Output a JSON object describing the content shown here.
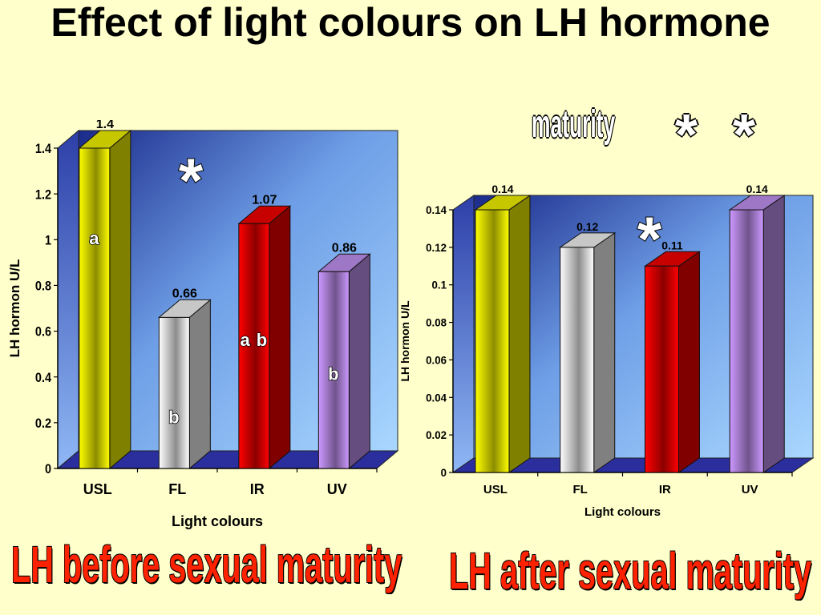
{
  "page": {
    "title": "Effect of light colours on LH hormone",
    "annotation_maturity": "maturity",
    "annotation_stars": "* *",
    "caption_before": "LH before sexual maturity",
    "caption_after": "LH after sexual maturity"
  },
  "colors": {
    "background": "#FFFFCC",
    "caption": "#FF2200",
    "usl": "#FFFF00",
    "fl": "#FFFFFF",
    "ir": "#FF0000",
    "uv": "#CC99FF"
  },
  "chart_data": [
    {
      "type": "bar",
      "categories": [
        "USL",
        "FL",
        "IR",
        "UV"
      ],
      "values": [
        1.4,
        0.66,
        1.07,
        0.86
      ],
      "data_labels": [
        "1.4",
        "0.66",
        "1.07",
        "0.86"
      ],
      "significance_letters": [
        "a",
        "b",
        "a b",
        "b"
      ],
      "significance_mark": "*",
      "xlabel": "Light colours",
      "ylabel": "LH hormon U/L",
      "ylim": [
        0,
        1.4
      ],
      "yticks": [
        "0",
        "0.2",
        "0.4",
        "0.6",
        "0.8",
        "1",
        "1.2",
        "1.4"
      ],
      "grid": false,
      "bar_colors": [
        "#FFFF00",
        "#FFFFFF",
        "#FF0000",
        "#CC99FF"
      ]
    },
    {
      "type": "bar",
      "categories": [
        "USL",
        "FL",
        "IR",
        "UV"
      ],
      "values": [
        0.14,
        0.12,
        0.11,
        0.14
      ],
      "data_labels": [
        "0.14",
        "0.12",
        "0.11",
        "0.14"
      ],
      "significance_mark": "*",
      "xlabel": "Light colours",
      "ylabel": "LH hormon  U/L",
      "ylim": [
        0,
        0.14
      ],
      "yticks": [
        "0",
        "0.02",
        "0.04",
        "0.06",
        "0.08",
        "0.1",
        "0.12",
        "0.14"
      ],
      "grid": false,
      "bar_colors": [
        "#FFFF00",
        "#FFFFFF",
        "#FF0000",
        "#CC99FF"
      ]
    }
  ]
}
